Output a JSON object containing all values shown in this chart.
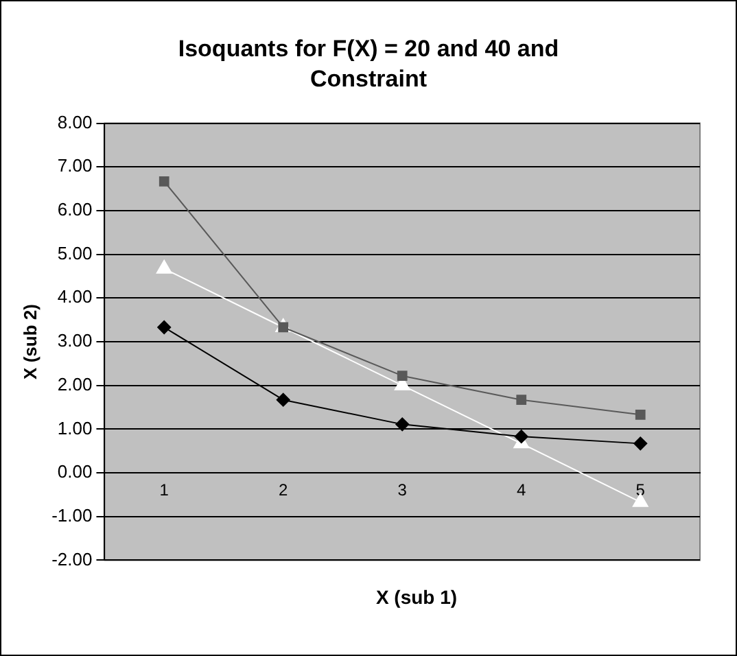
{
  "chart_data": {
    "type": "line",
    "title": "Isoquants for F(X) = 20 and 40  and Constraint",
    "xlabel": "X (sub 1)",
    "ylabel": "X (sub 2)",
    "categories": [
      "1",
      "2",
      "3",
      "4",
      "5"
    ],
    "series": [
      {
        "color": "#000000",
        "marker": "diamond",
        "values": [
          3.33,
          1.67,
          1.11,
          0.83,
          0.67
        ]
      },
      {
        "color": "#595959",
        "marker": "square",
        "values": [
          6.67,
          3.33,
          2.22,
          1.67,
          1.33
        ]
      },
      {
        "color": "#ffffff",
        "marker": "triangle",
        "values": [
          4.67,
          3.33,
          2.0,
          0.67,
          -0.67
        ]
      }
    ],
    "ylim": [
      -2,
      8
    ],
    "yticks": [
      {
        "value": -2,
        "label": "-2.00"
      },
      {
        "value": -1,
        "label": "-1.00"
      },
      {
        "value": 0,
        "label": "0.00"
      },
      {
        "value": 1,
        "label": "1.00"
      },
      {
        "value": 2,
        "label": "2.00"
      },
      {
        "value": 3,
        "label": "3.00"
      },
      {
        "value": 4,
        "label": "4.00"
      },
      {
        "value": 5,
        "label": "5.00"
      },
      {
        "value": 6,
        "label": "6.00"
      },
      {
        "value": 7,
        "label": "7.00"
      },
      {
        "value": 8,
        "label": "8.00"
      }
    ],
    "grid": "y",
    "legend": false
  }
}
